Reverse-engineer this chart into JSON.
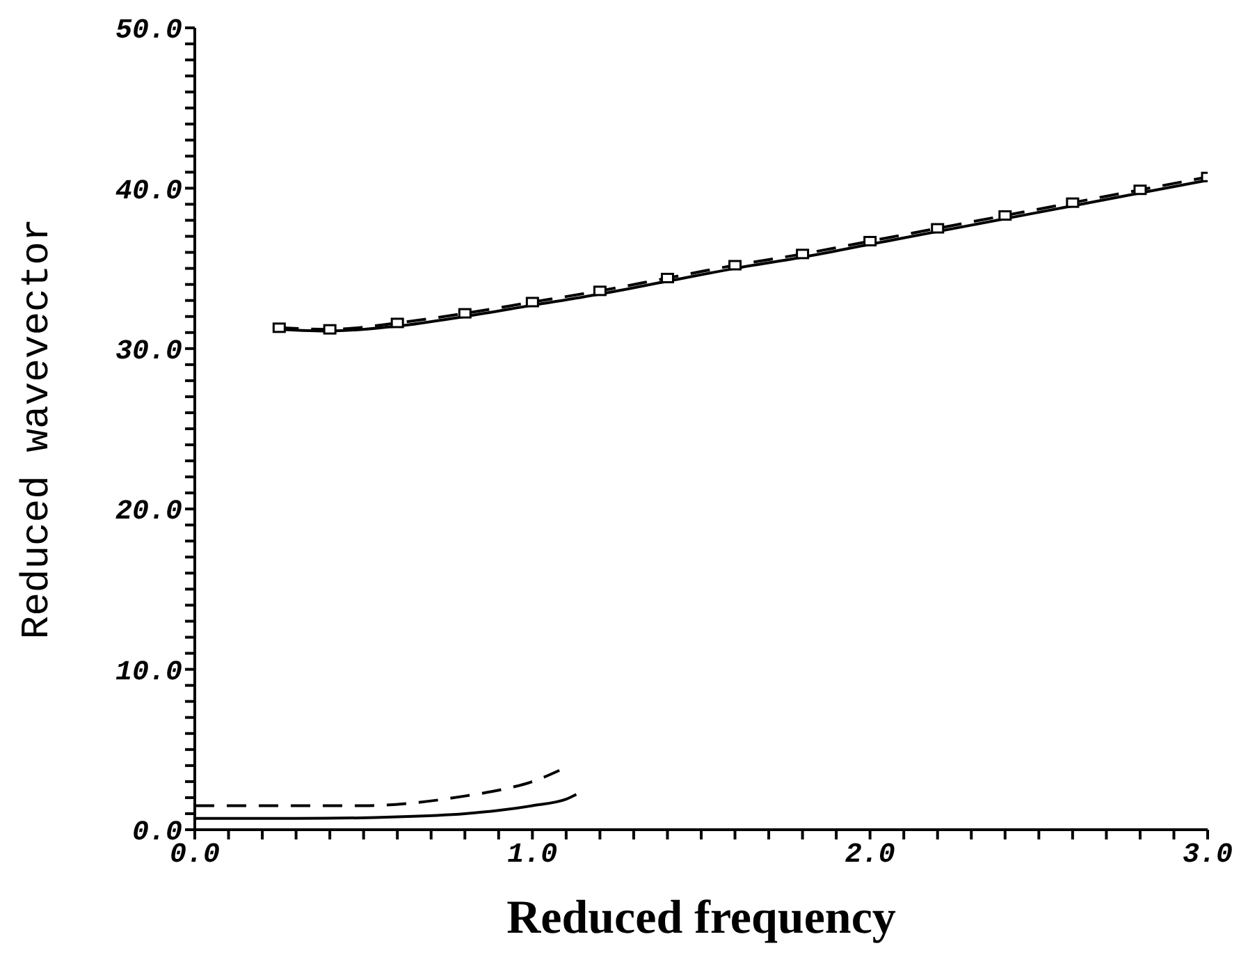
{
  "chart_data": {
    "type": "line",
    "xlabel": "Reduced  frequency",
    "ylabel": "Reduced wavevector",
    "xlim": [
      0,
      3
    ],
    "ylim": [
      0,
      50
    ],
    "xticks": [
      {
        "value": 0,
        "label": "0.0"
      },
      {
        "value": 0.1,
        "label": null
      },
      {
        "value": 0.2,
        "label": null
      },
      {
        "value": 0.3,
        "label": null
      },
      {
        "value": 0.4,
        "label": null
      },
      {
        "value": 0.5,
        "label": null
      },
      {
        "value": 0.6,
        "label": null
      },
      {
        "value": 0.7,
        "label": null
      },
      {
        "value": 0.8,
        "label": null
      },
      {
        "value": 0.9,
        "label": null
      },
      {
        "value": 1,
        "label": "1.0"
      },
      {
        "value": 1.1,
        "label": null
      },
      {
        "value": 1.2,
        "label": null
      },
      {
        "value": 1.3,
        "label": null
      },
      {
        "value": 1.4,
        "label": null
      },
      {
        "value": 1.5,
        "label": null
      },
      {
        "value": 1.6,
        "label": null
      },
      {
        "value": 1.7,
        "label": null
      },
      {
        "value": 1.8,
        "label": null
      },
      {
        "value": 1.9,
        "label": null
      },
      {
        "value": 2,
        "label": "2.0"
      },
      {
        "value": 2.1,
        "label": null
      },
      {
        "value": 2.2,
        "label": null
      },
      {
        "value": 2.3,
        "label": null
      },
      {
        "value": 2.4,
        "label": null
      },
      {
        "value": 2.5,
        "label": null
      },
      {
        "value": 2.6,
        "label": null
      },
      {
        "value": 2.7,
        "label": null
      },
      {
        "value": 2.8,
        "label": null
      },
      {
        "value": 2.9,
        "label": null
      },
      {
        "value": 3,
        "label": "3.0"
      }
    ],
    "yticks": [
      {
        "value": 0,
        "label": "0.0"
      },
      {
        "value": 1,
        "label": null
      },
      {
        "value": 2,
        "label": null
      },
      {
        "value": 3,
        "label": null
      },
      {
        "value": 4,
        "label": null
      },
      {
        "value": 5,
        "label": null
      },
      {
        "value": 6,
        "label": null
      },
      {
        "value": 7,
        "label": null
      },
      {
        "value": 8,
        "label": null
      },
      {
        "value": 9,
        "label": null
      },
      {
        "value": 10,
        "label": "10.0"
      },
      {
        "value": 11,
        "label": null
      },
      {
        "value": 12,
        "label": null
      },
      {
        "value": 13,
        "label": null
      },
      {
        "value": 14,
        "label": null
      },
      {
        "value": 15,
        "label": null
      },
      {
        "value": 16,
        "label": null
      },
      {
        "value": 17,
        "label": null
      },
      {
        "value": 18,
        "label": null
      },
      {
        "value": 19,
        "label": null
      },
      {
        "value": 20,
        "label": "20.0"
      },
      {
        "value": 21,
        "label": null
      },
      {
        "value": 22,
        "label": null
      },
      {
        "value": 23,
        "label": null
      },
      {
        "value": 24,
        "label": null
      },
      {
        "value": 25,
        "label": null
      },
      {
        "value": 26,
        "label": null
      },
      {
        "value": 27,
        "label": null
      },
      {
        "value": 28,
        "label": null
      },
      {
        "value": 29,
        "label": null
      },
      {
        "value": 30,
        "label": "30.0"
      },
      {
        "value": 31,
        "label": null
      },
      {
        "value": 32,
        "label": null
      },
      {
        "value": 33,
        "label": null
      },
      {
        "value": 34,
        "label": null
      },
      {
        "value": 35,
        "label": null
      },
      {
        "value": 36,
        "label": null
      },
      {
        "value": 37,
        "label": null
      },
      {
        "value": 38,
        "label": null
      },
      {
        "value": 39,
        "label": null
      },
      {
        "value": 40,
        "label": "40.0"
      },
      {
        "value": 41,
        "label": null
      },
      {
        "value": 42,
        "label": null
      },
      {
        "value": 43,
        "label": null
      },
      {
        "value": 44,
        "label": null
      },
      {
        "value": 45,
        "label": null
      },
      {
        "value": 46,
        "label": null
      },
      {
        "value": 47,
        "label": null
      },
      {
        "value": 48,
        "label": null
      },
      {
        "value": 49,
        "label": null
      },
      {
        "value": 50,
        "label": "50.0"
      }
    ],
    "marker": "none",
    "series": [
      {
        "color": "#000000",
        "line_style": "solid",
        "x": [
          0.25,
          0.4,
          0.6,
          0.8,
          1.0,
          1.2,
          1.4,
          1.6,
          1.8,
          2.0,
          2.2,
          2.4,
          2.6,
          2.8,
          3.0
        ],
        "values": [
          31.2,
          31.1,
          31.4,
          32.0,
          32.7,
          33.4,
          34.2,
          35.0,
          35.7,
          36.5,
          37.3,
          38.1,
          38.9,
          39.7,
          40.5
        ]
      },
      {
        "color": "#000000",
        "line_style": "dashed",
        "marker": "square",
        "x": [
          0.25,
          0.4,
          0.6,
          0.8,
          1.0,
          1.2,
          1.4,
          1.6,
          1.8,
          2.0,
          2.2,
          2.4,
          2.6,
          2.8,
          3.0
        ],
        "values": [
          31.3,
          31.2,
          31.6,
          32.2,
          32.9,
          33.6,
          34.4,
          35.2,
          35.9,
          36.7,
          37.5,
          38.3,
          39.1,
          39.9,
          40.7
        ]
      },
      {
        "color": "#000000",
        "line_style": "solid",
        "x": [
          0,
          0.3,
          0.6,
          0.8,
          0.9,
          1.0,
          1.1,
          1.13
        ],
        "values": [
          0.7,
          0.7,
          0.8,
          1.0,
          1.2,
          1.5,
          1.9,
          2.2
        ]
      },
      {
        "color": "#000000",
        "line_style": "dashed",
        "x": [
          0,
          0.3,
          0.5,
          0.66,
          0.8,
          0.93,
          1.0,
          1.08
        ],
        "values": [
          1.5,
          1.5,
          1.5,
          1.7,
          2.1,
          2.6,
          3.0,
          3.7
        ]
      }
    ]
  }
}
